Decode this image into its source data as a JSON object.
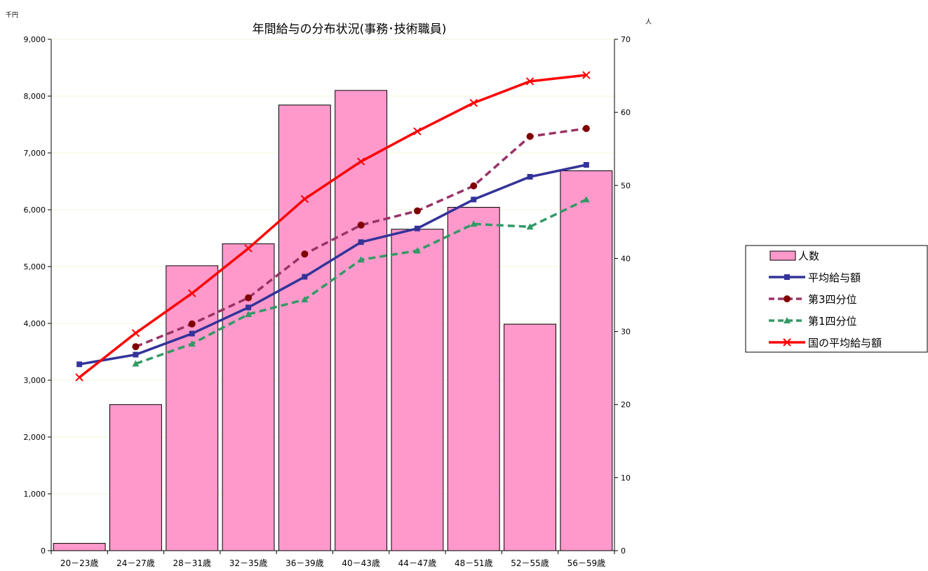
{
  "chart_data": {
    "type": "bar",
    "title": "年間給与の分布状況(事務･技術職員)",
    "left_axis_unit": "千円",
    "right_axis_unit": "人",
    "categories": [
      "20－23歳",
      "24－27歳",
      "28－31歳",
      "32－35歳",
      "36－39歳",
      "40－43歳",
      "44－47歳",
      "48－51歳",
      "52－55歳",
      "56－59歳"
    ],
    "left_axis": {
      "ylim": [
        0,
        9000
      ],
      "ticks": [
        0,
        1000,
        2000,
        3000,
        4000,
        5000,
        6000,
        7000,
        8000,
        9000
      ],
      "tick_labels": [
        "0",
        "1,000",
        "2,000",
        "3,000",
        "4,000",
        "5,000",
        "6,000",
        "7,000",
        "8,000",
        "9,000"
      ]
    },
    "right_axis": {
      "ylim": [
        0,
        70
      ],
      "ticks": [
        0,
        10,
        20,
        30,
        40,
        50,
        60,
        70
      ],
      "tick_labels": [
        "0",
        "10",
        "20",
        "30",
        "40",
        "50",
        "60",
        "70"
      ]
    },
    "grid": true,
    "legend_position": "right",
    "series": [
      {
        "name": "人数",
        "type": "bar",
        "axis": "right",
        "color": "#ff99cc",
        "values": [
          1,
          20,
          39,
          42,
          61,
          63,
          44,
          47,
          31,
          52
        ]
      },
      {
        "name": "平均給与額",
        "type": "line",
        "axis": "left",
        "color": "#333399",
        "marker": "square",
        "dash": "solid",
        "values": [
          3280,
          3450,
          3820,
          4280,
          4820,
          5430,
          5670,
          6180,
          6580,
          6790
        ]
      },
      {
        "name": "第3四分位",
        "type": "line",
        "axis": "left",
        "color": "#993366",
        "marker": "circle",
        "dash": "dashed",
        "values": [
          null,
          3590,
          3990,
          4450,
          5220,
          5730,
          5980,
          6420,
          7290,
          7430
        ]
      },
      {
        "name": "第1四分位",
        "type": "line",
        "axis": "left",
        "color": "#339966",
        "marker": "triangle",
        "dash": "dashed",
        "values": [
          null,
          3290,
          3640,
          4160,
          4420,
          5120,
          5280,
          5750,
          5700,
          6180
        ]
      },
      {
        "name": "国の平均給与額",
        "type": "line",
        "axis": "left",
        "color": "#ff0000",
        "marker": "x",
        "dash": "solid",
        "values": [
          3050,
          3830,
          4530,
          5320,
          6190,
          6850,
          7380,
          7880,
          8260,
          8370
        ]
      }
    ]
  }
}
